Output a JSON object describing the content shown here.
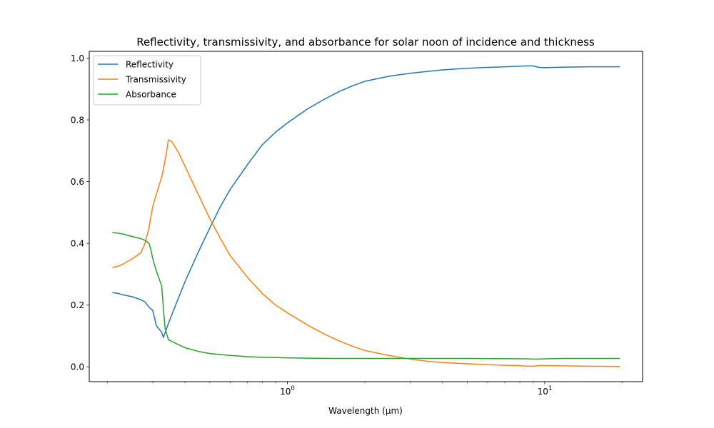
{
  "chart_data": {
    "type": "line",
    "title": "Reflectivity, transmissivity, and absorbance for solar noon of incidence and thickness",
    "xlabel": "Wavelength (μm)",
    "ylabel": "",
    "xscale": "log",
    "xlim": [
      0.17,
      24
    ],
    "ylim": [
      -0.048,
      1.022
    ],
    "grid": false,
    "legend_position": "top-left",
    "x_ticks": [
      {
        "value": 1,
        "base": "10",
        "exp": "0"
      },
      {
        "value": 10,
        "base": "10",
        "exp": "1"
      }
    ],
    "y_ticks": [
      {
        "value": 0.0,
        "label": "0.0"
      },
      {
        "value": 0.2,
        "label": "0.2"
      },
      {
        "value": 0.4,
        "label": "0.4"
      },
      {
        "value": 0.6,
        "label": "0.6"
      },
      {
        "value": 0.8,
        "label": "0.8"
      },
      {
        "value": 1.0,
        "label": "1.0"
      }
    ],
    "series": [
      {
        "name": "Reflectivity",
        "color": "#1f77b4",
        "x": [
          0.21,
          0.22,
          0.23,
          0.25,
          0.27,
          0.28,
          0.29,
          0.3,
          0.31,
          0.325,
          0.33,
          0.345,
          0.36,
          0.4,
          0.45,
          0.5,
          0.55,
          0.6,
          0.7,
          0.8,
          0.9,
          1.0,
          1.2,
          1.4,
          1.6,
          1.8,
          2.0,
          2.5,
          3.0,
          3.5,
          4.0,
          5.0,
          6.0,
          7.0,
          8.0,
          8.5,
          9.0,
          9.5,
          10.0,
          12.0,
          15.0,
          19.5
        ],
        "y": [
          0.24,
          0.238,
          0.233,
          0.227,
          0.217,
          0.21,
          0.193,
          0.183,
          0.133,
          0.112,
          0.095,
          0.14,
          0.18,
          0.275,
          0.37,
          0.45,
          0.52,
          0.575,
          0.655,
          0.72,
          0.76,
          0.79,
          0.836,
          0.868,
          0.893,
          0.911,
          0.925,
          0.942,
          0.951,
          0.957,
          0.962,
          0.967,
          0.97,
          0.972,
          0.974,
          0.975,
          0.975,
          0.97,
          0.969,
          0.971,
          0.972,
          0.972
        ]
      },
      {
        "name": "Transmissivity",
        "color": "#ff7f0e",
        "x": [
          0.21,
          0.22,
          0.23,
          0.25,
          0.27,
          0.28,
          0.29,
          0.3,
          0.31,
          0.325,
          0.33,
          0.34,
          0.345,
          0.355,
          0.365,
          0.38,
          0.4,
          0.45,
          0.5,
          0.55,
          0.6,
          0.7,
          0.8,
          0.9,
          1.0,
          1.2,
          1.4,
          1.6,
          1.8,
          2.0,
          2.5,
          3.0,
          3.5,
          4.0,
          5.0,
          6.0,
          7.0,
          8.0,
          8.5,
          9.0,
          9.5,
          10.0,
          12.0,
          15.0,
          19.5
        ],
        "y": [
          0.322,
          0.326,
          0.333,
          0.35,
          0.37,
          0.4,
          0.45,
          0.52,
          0.56,
          0.615,
          0.64,
          0.7,
          0.735,
          0.73,
          0.715,
          0.69,
          0.65,
          0.56,
          0.48,
          0.415,
          0.36,
          0.29,
          0.237,
          0.2,
          0.175,
          0.135,
          0.105,
          0.083,
          0.066,
          0.053,
          0.036,
          0.025,
          0.018,
          0.014,
          0.01,
          0.007,
          0.005,
          0.004,
          0.002,
          0.002,
          0.004,
          0.004,
          0.003,
          0.002,
          0.001
        ]
      },
      {
        "name": "Absorbance",
        "color": "#2ca02c",
        "x": [
          0.21,
          0.22,
          0.23,
          0.25,
          0.27,
          0.28,
          0.29,
          0.295,
          0.3,
          0.31,
          0.325,
          0.33,
          0.335,
          0.345,
          0.36,
          0.4,
          0.45,
          0.5,
          0.6,
          0.7,
          0.8,
          0.9,
          1.0,
          1.2,
          1.5,
          2.0,
          3.0,
          5.0,
          8.0,
          8.5,
          9.0,
          9.5,
          10.0,
          12.0,
          15.0,
          19.5
        ],
        "y": [
          0.435,
          0.433,
          0.43,
          0.422,
          0.415,
          0.41,
          0.4,
          0.38,
          0.35,
          0.31,
          0.262,
          0.19,
          0.125,
          0.088,
          0.08,
          0.062,
          0.05,
          0.043,
          0.037,
          0.033,
          0.031,
          0.03,
          0.029,
          0.028,
          0.027,
          0.027,
          0.027,
          0.027,
          0.026,
          0.026,
          0.025,
          0.025,
          0.026,
          0.027,
          0.027,
          0.027
        ]
      }
    ]
  }
}
